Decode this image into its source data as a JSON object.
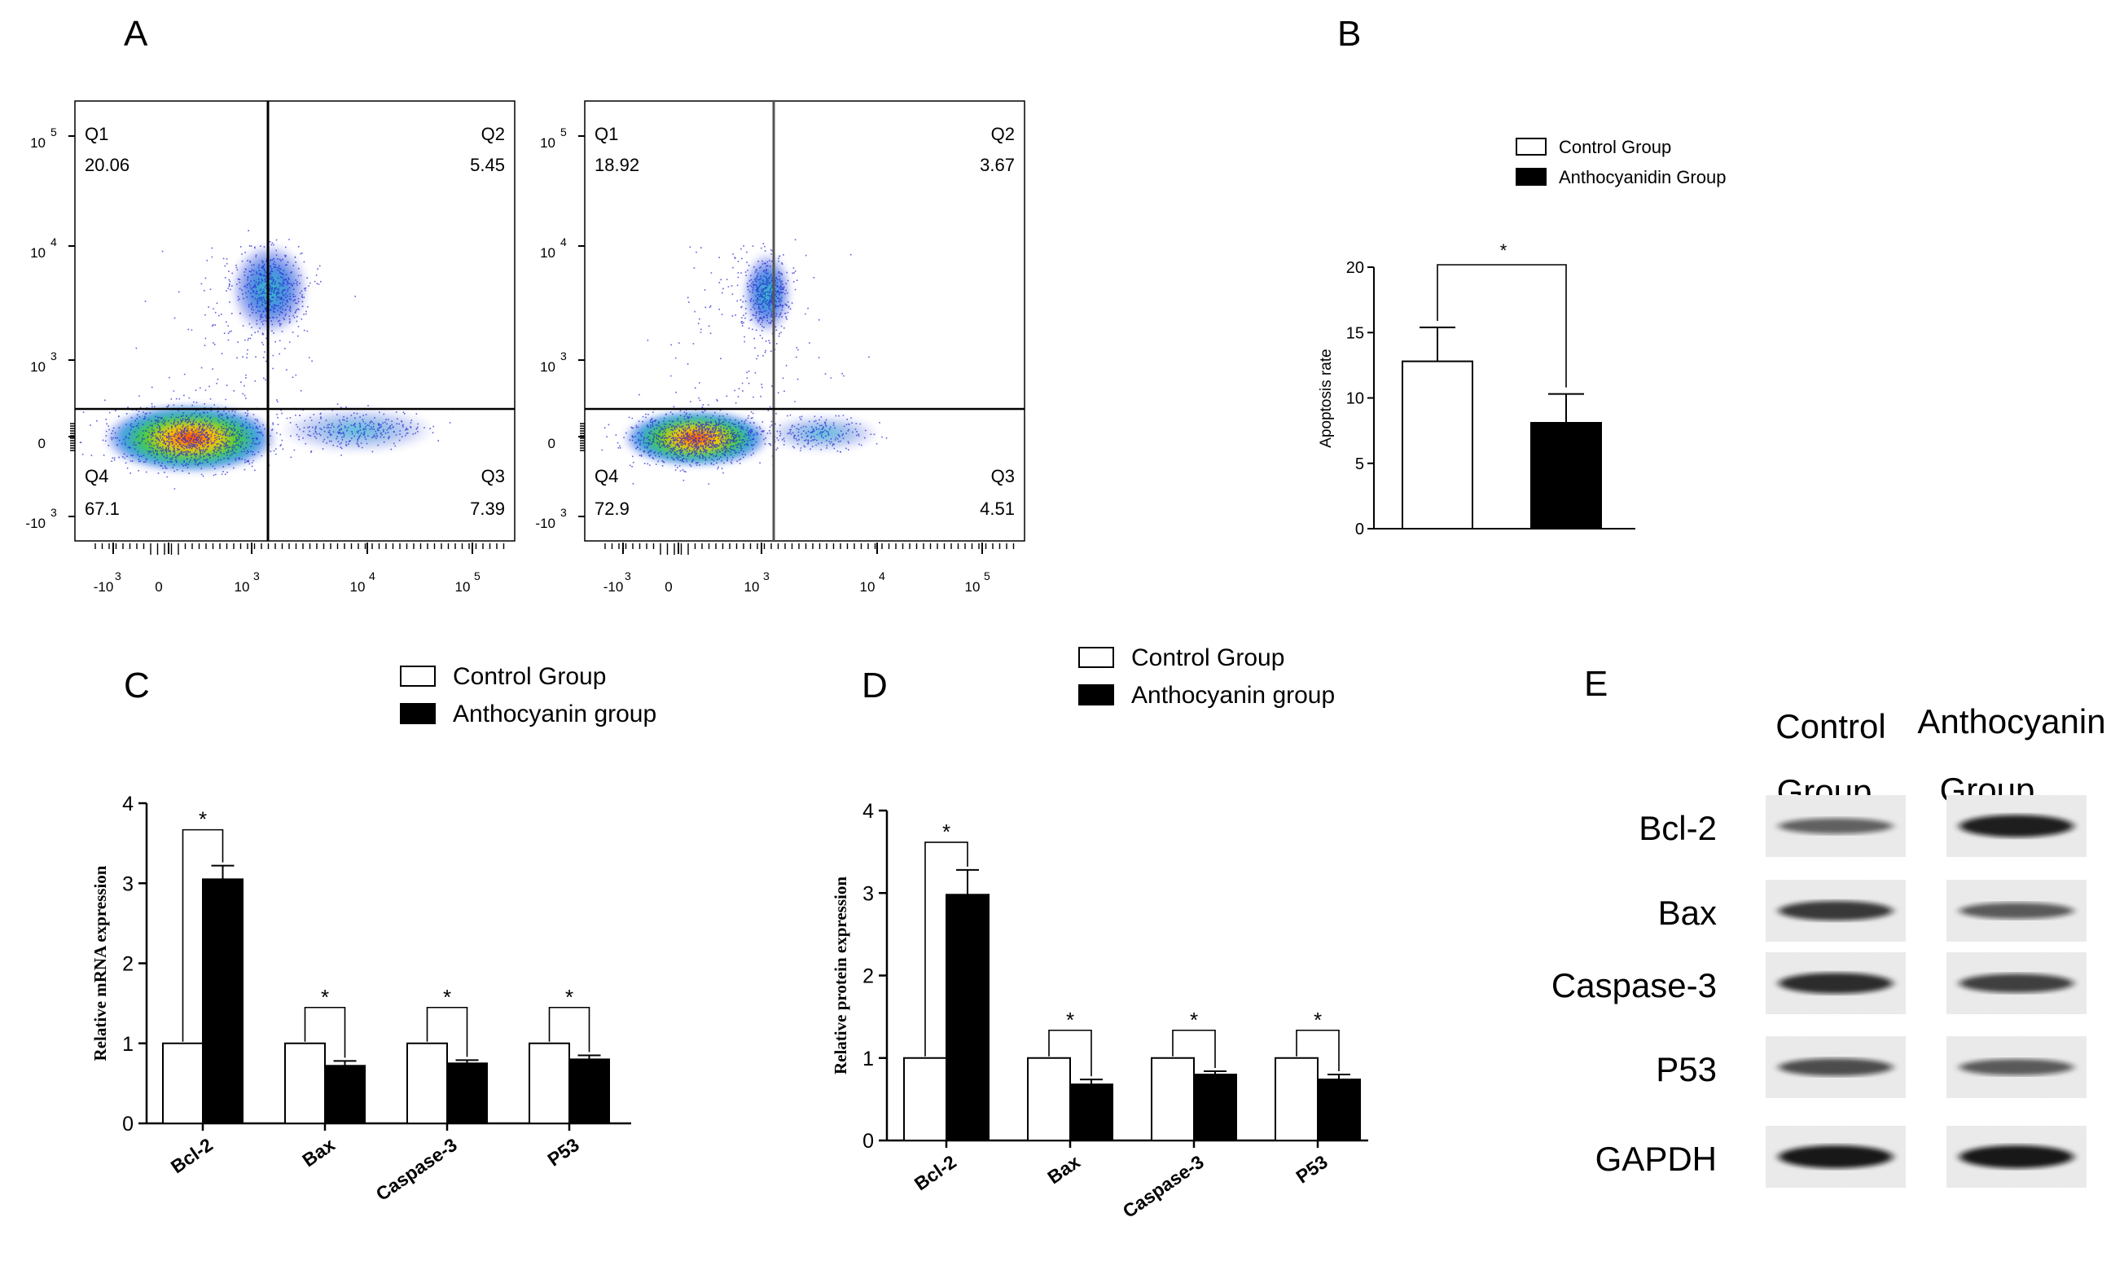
{
  "panels": {
    "a": "A",
    "b": "B",
    "c": "C",
    "d": "D",
    "e": "E"
  },
  "flow": {
    "x_ticks": [
      {
        "base": "-10",
        "exp": "3"
      },
      {
        "base": "0",
        "exp": ""
      },
      {
        "base": "10",
        "exp": "3"
      },
      {
        "base": "10",
        "exp": "4"
      },
      {
        "base": "10",
        "exp": "5"
      }
    ],
    "y_ticks": [
      {
        "base": "10",
        "exp": "5"
      },
      {
        "base": "10",
        "exp": "4"
      },
      {
        "base": "10",
        "exp": "3"
      },
      {
        "base": "0",
        "exp": ""
      },
      {
        "base": "-10",
        "exp": "3"
      }
    ],
    "plots": [
      {
        "q1_label": "Q1",
        "q1": "20.06",
        "q2_label": "Q2",
        "q2": "5.45",
        "q3_label": "Q3",
        "q3": "7.39",
        "q4_label": "Q4",
        "q4": "67.1"
      },
      {
        "q1_label": "Q1",
        "q1": "18.92",
        "q2_label": "Q2",
        "q2": "3.67",
        "q3_label": "Q3",
        "q3": "4.51",
        "q4_label": "Q4",
        "q4": "72.9"
      }
    ]
  },
  "chart_data": [
    {
      "type": "bar",
      "panel": "B",
      "title": "",
      "ylabel": "Apoptosis rate",
      "xlabel": "",
      "ylim": [
        0,
        20
      ],
      "yticks": [
        "0",
        "5",
        "10",
        "15",
        "20"
      ],
      "legend": [
        "Control Group",
        "Anthocyanidin Group"
      ],
      "legend_colors": [
        "#ffffff",
        "#000000"
      ],
      "series": [
        {
          "name": "Control Group",
          "values": [
            12.8
          ],
          "errors": [
            2.6
          ]
        },
        {
          "name": "Anthocyanidin Group",
          "values": [
            8.1
          ],
          "errors": [
            2.2
          ]
        }
      ],
      "significance": "*"
    },
    {
      "type": "bar",
      "panel": "C",
      "ylabel": "Relative mRNA expression",
      "xlabel": "",
      "ylim": [
        0,
        4
      ],
      "yticks": [
        "0",
        "1",
        "2",
        "3",
        "4"
      ],
      "categories": [
        "Bcl-2",
        "Bax",
        "Caspase-3",
        "P53"
      ],
      "legend": [
        "Control Group",
        "Anthocyanin group"
      ],
      "series": [
        {
          "name": "Control Group",
          "values": [
            1.0,
            1.0,
            1.0,
            1.0
          ],
          "errors": [
            0,
            0,
            0,
            0
          ]
        },
        {
          "name": "Anthocyanin group",
          "values": [
            3.05,
            0.72,
            0.75,
            0.8
          ],
          "errors": [
            0.17,
            0.06,
            0.04,
            0.05
          ]
        }
      ],
      "significance": [
        "*",
        "*",
        "*",
        "*"
      ]
    },
    {
      "type": "bar",
      "panel": "D",
      "ylabel": "Relative protein expression",
      "xlabel": "",
      "ylim": [
        0,
        4
      ],
      "yticks": [
        "0",
        "1",
        "2",
        "3",
        "4"
      ],
      "categories": [
        "Bcl-2",
        "Bax",
        "Caspase-3",
        "P53"
      ],
      "legend": [
        "Control Group",
        "Anthocyanin group"
      ],
      "series": [
        {
          "name": "Control Group",
          "values": [
            1.0,
            1.0,
            1.0,
            1.0
          ],
          "errors": [
            0,
            0,
            0,
            0
          ]
        },
        {
          "name": "Anthocyanin group",
          "values": [
            2.98,
            0.68,
            0.8,
            0.74
          ],
          "errors": [
            0.3,
            0.06,
            0.04,
            0.06
          ]
        }
      ],
      "significance": [
        "*",
        "*",
        "*",
        "*"
      ]
    }
  ],
  "blot": {
    "col1_line1": "Control",
    "col1_line2": "Group",
    "col2_line1": "Anthocyanin",
    "col2_line2": "Group",
    "rows": [
      {
        "label": "Bcl-2",
        "c": 0.45,
        "a": 0.95
      },
      {
        "label": "Bax",
        "c": 0.75,
        "a": 0.5
      },
      {
        "label": "Caspase-3",
        "c": 0.85,
        "a": 0.7
      },
      {
        "label": "P53",
        "c": 0.6,
        "a": 0.5
      },
      {
        "label": "GAPDH",
        "c": 1.0,
        "a": 1.0
      }
    ]
  }
}
